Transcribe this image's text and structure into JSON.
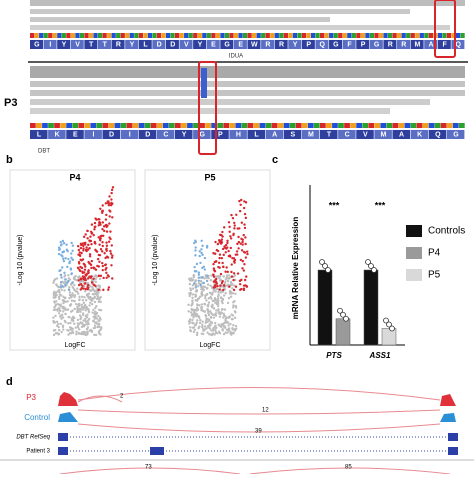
{
  "panel_a": {
    "top_sequence": "GIYVTTRYLDDVYEGEWRRYPQGFPGRRMAFQ",
    "top_gene": "IDUA",
    "sample": "P3",
    "bottom_sequence": "LKEIDIDCYGPHLASMTCVMAKQG",
    "bottom_gene": "DBT"
  },
  "panel_b": {
    "label": "b",
    "plots": [
      {
        "title": "P4"
      },
      {
        "title": "P5"
      }
    ],
    "y_label": "-Log 10 (pvalue)",
    "x_label": "LogFC"
  },
  "panel_c": {
    "label": "c",
    "y_label": "mRNA Relative Expression",
    "groups": [
      {
        "name": "PTS",
        "significance": "***",
        "bars": [
          {
            "series": 0,
            "value": 1.0
          },
          {
            "series": 1,
            "value": 0.35
          }
        ]
      },
      {
        "name": "ASS1",
        "significance": "***",
        "bars": [
          {
            "series": 0,
            "value": 1.0
          },
          {
            "series": 2,
            "value": 0.22
          }
        ]
      }
    ],
    "series": [
      {
        "name": "Controls",
        "color": "#111111"
      },
      {
        "name": "P4",
        "color": "#9a9a9a"
      },
      {
        "name": "P5",
        "color": "#d9d9d9"
      }
    ]
  },
  "panel_d": {
    "label": "d",
    "tracks": [
      "P3",
      "Control",
      "DBT RefSeq",
      "Patient 3"
    ],
    "junction_counts": [
      "2",
      "12",
      "39",
      "73",
      "85"
    ]
  }
}
